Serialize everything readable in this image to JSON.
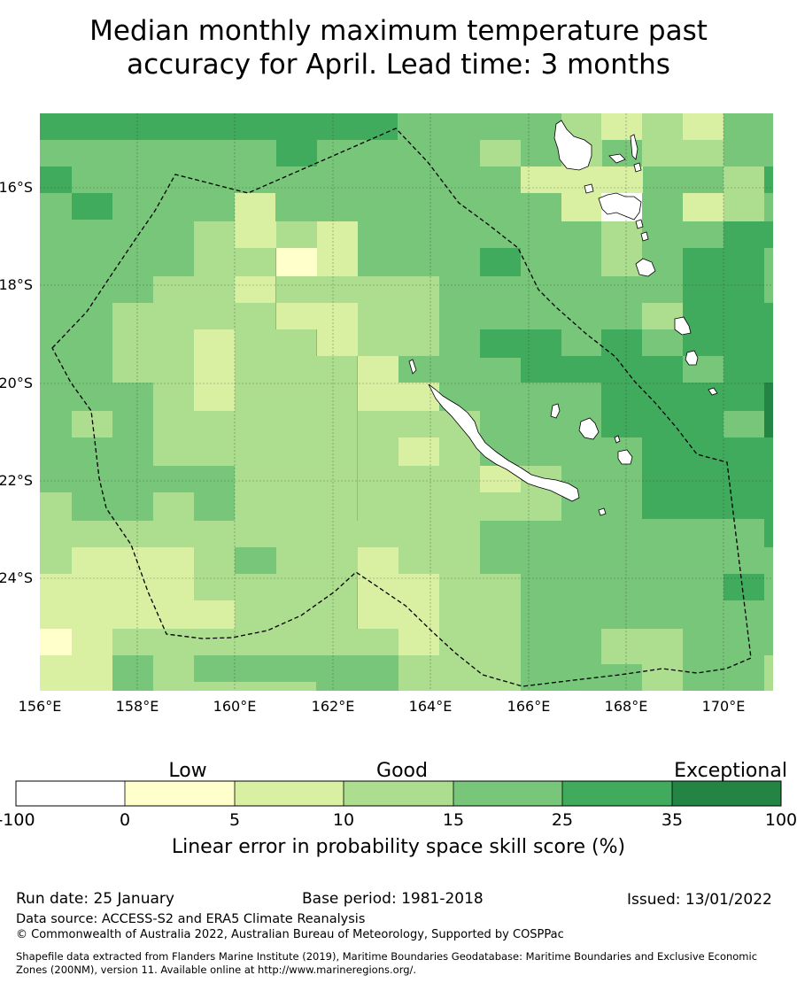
{
  "title": {
    "line1": "Median monthly maximum temperature past",
    "line2": "accuracy for April. Lead time: 3 months"
  },
  "map": {
    "lon_labels": [
      "156°E",
      "158°E",
      "160°E",
      "162°E",
      "164°E",
      "166°E",
      "168°E",
      "170°E"
    ],
    "lat_labels": [
      "16°S",
      "18°S",
      "20°S",
      "22°S",
      "24°S"
    ],
    "ocean_color": "#78c679",
    "land_color": "#ffffff",
    "boundary_style": "dashed",
    "grid": "dashed"
  },
  "colorbar": {
    "qualitative": [
      "Low",
      "Good",
      "Exceptional"
    ],
    "ticks": [
      "-100",
      "0",
      "5",
      "10",
      "15",
      "25",
      "35",
      "100"
    ],
    "colors": [
      "#ffffff",
      "#ffffcc",
      "#d9f0a3",
      "#addd8e",
      "#78c679",
      "#41ab5d",
      "#238443"
    ],
    "label": "Linear error in probability space skill score (%)"
  },
  "footer": {
    "run_date": "Run date: 25 January",
    "base_period": "Base period: 1981-2018",
    "issued": "Issued: 13/01/2022",
    "data_source": "Data source: ACCESS-S2 and ERA5 Climate Reanalysis",
    "copyright": "© Commonwealth of Australia 2022, Australian Bureau of Meteorology, Supported by COSPPac",
    "shapefile_line1": "Shapefile data extracted from Flanders Marine Institute (2019), Maritime Boundaries Geodatabase: Maritime Boundaries and Exclusive Economic",
    "shapefile_line2": "Zones (200NM), version 11. Available online at http://www.marineregions.org/."
  }
}
